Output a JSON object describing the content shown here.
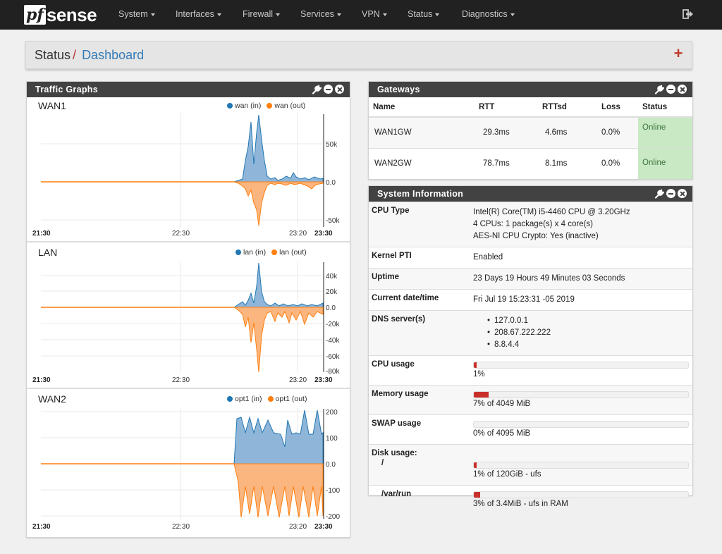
{
  "navbar": {
    "logo_pf": "pf",
    "logo_sense": "sense",
    "menu": [
      "System",
      "Interfaces",
      "Firewall",
      "Services",
      "VPN",
      "Status",
      "Diagnostics"
    ]
  },
  "breadcrumb": {
    "section": "Status",
    "page": "Dashboard"
  },
  "traffic": {
    "title": "Traffic Graphs",
    "graphs": [
      {
        "name": "WAN1",
        "legend_in": "wan (in)",
        "legend_out": "wan (out)",
        "yticks": [
          "50k",
          "0.0",
          "-50k"
        ],
        "xticks": [
          "21:30",
          "22:30",
          "23:20",
          "23:30"
        ]
      },
      {
        "name": "LAN",
        "legend_in": "lan (in)",
        "legend_out": "lan (out)",
        "yticks": [
          "40k",
          "20k",
          "0.0",
          "-20k",
          "-40k",
          "-60k",
          "-80k"
        ],
        "xticks": [
          "21:30",
          "22:30",
          "23:20",
          "23:30"
        ]
      },
      {
        "name": "WAN2",
        "legend_in": "opt1 (in)",
        "legend_out": "opt1 (out)",
        "yticks": [
          "200",
          "100",
          "0.0",
          "-100",
          "-200"
        ],
        "xticks": [
          "21:30",
          "22:30",
          "23:20",
          "23:30"
        ]
      }
    ],
    "colors": {
      "in": "#1f77b4",
      "in_fill": "#8fb6d9",
      "out": "#ff7f0e",
      "out_fill": "#fbb57e"
    }
  },
  "gateways": {
    "title": "Gateways",
    "headers": [
      "Name",
      "RTT",
      "RTTsd",
      "Loss",
      "Status"
    ],
    "rows": [
      {
        "name": "WAN1GW",
        "rtt": "29.3ms",
        "rttsd": "4.6ms",
        "loss": "0.0%",
        "status": "Online"
      },
      {
        "name": "WAN2GW",
        "rtt": "78.7ms",
        "rttsd": "8.1ms",
        "loss": "0.0%",
        "status": "Online"
      }
    ]
  },
  "sysinfo": {
    "title": "System Information",
    "cpu_type_label": "CPU Type",
    "cpu_type_lines": [
      "Intel(R) Core(TM) i5-4460 CPU @ 3.20GHz",
      "4 CPUs: 1 package(s) x 4 core(s)",
      "AES-NI CPU Crypto: Yes (inactive)"
    ],
    "kernel_pti_label": "Kernel PTI",
    "kernel_pti": "Enabled",
    "uptime_label": "Uptime",
    "uptime": "23 Days 19 Hours 49 Minutes 03 Seconds",
    "datetime_label": "Current date/time",
    "datetime": "Fri Jul 19 15:23:31 -05 2019",
    "dns_label": "DNS server(s)",
    "dns": [
      "127.0.0.1",
      "208.67.222.222",
      "8.8.4.4"
    ],
    "cpu_usage_label": "CPU usage",
    "cpu_usage_text": "1%",
    "cpu_usage_pct": 1,
    "memory_label": "Memory usage",
    "memory_text": "7% of 4049 MiB",
    "memory_pct": 7,
    "swap_label": "SWAP usage",
    "swap_text": "0% of 4095 MiB",
    "swap_pct": 0,
    "disk_label": "Disk usage:",
    "disk_root_label": "/",
    "disk_root_text": "1% of 120GiB - ufs",
    "disk_root_pct": 1,
    "disk_varrun_label": "/var/run",
    "disk_varrun_text": "3% of 3.4MiB - ufs in RAM",
    "disk_varrun_pct": 3
  }
}
